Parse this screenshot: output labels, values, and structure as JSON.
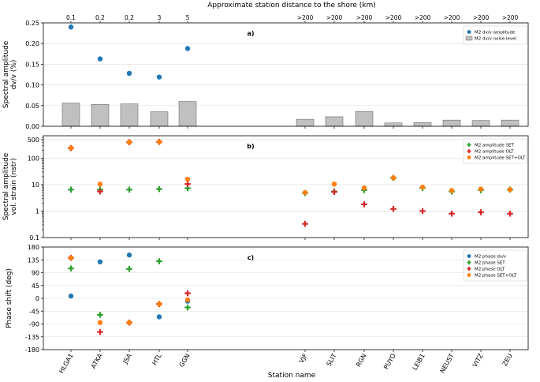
{
  "figure": {
    "top_axis_label": "Approximate station distance to the shore (km)",
    "bottom_axis_label": "Station name"
  },
  "chart_data": [
    {
      "panel": "a)",
      "type": "bar",
      "categories": [
        "HLGA1",
        "ATKA",
        "JSA",
        "HTL",
        "GGN",
        "VJF",
        "SLIT",
        "RGN",
        "PUYO",
        "LEIB1",
        "NEUST",
        "VITZ",
        "ZEU"
      ],
      "distance_labels": [
        "0.1",
        "0.2",
        "0.2",
        "3",
        "5",
        ">200",
        ">200",
        ">200",
        ">200",
        ">200",
        ">200",
        ">200",
        ">200"
      ],
      "ylabel": "Spectral amplitude\ndv/v (%)",
      "ylim": [
        0,
        0.25
      ],
      "yticks": [
        "0.00",
        "0.05",
        "0.10",
        "0.15",
        "0.20",
        "0.25"
      ],
      "grid": true,
      "legend_position": "top-right",
      "series": [
        {
          "name": "M2 dv/v amplitude",
          "kind": "scatter",
          "color": "#1f77b4",
          "values": [
            0.24,
            0.163,
            0.128,
            0.119,
            0.188,
            null,
            null,
            null,
            null,
            null,
            null,
            null,
            null
          ]
        },
        {
          "name": "M2 dv/v noise level",
          "kind": "bar",
          "color": "#c0c0c0",
          "values": [
            0.056,
            0.053,
            0.054,
            0.035,
            0.06,
            0.017,
            0.023,
            0.036,
            0.008,
            0.009,
            0.015,
            0.014,
            0.015
          ]
        }
      ]
    },
    {
      "panel": "b)",
      "type": "scatter",
      "categories": [
        "HLGA1",
        "ATKA",
        "JSA",
        "HTL",
        "GGN",
        "VJF",
        "SLIT",
        "RGN",
        "PUYO",
        "LEIB1",
        "NEUST",
        "VITZ",
        "ZEU"
      ],
      "ylabel": "Spectral amplitude\nvol. strain (nstr)",
      "yscale": "log",
      "ylim": [
        0.1,
        700
      ],
      "yticks": [
        "0.1",
        "1",
        "10",
        "100",
        "500"
      ],
      "grid": true,
      "legend_position": "top-right",
      "series": [
        {
          "name": "M2 amplitude SET",
          "marker": "plus",
          "color": "#2ca02c",
          "values": [
            6.5,
            6.5,
            6.5,
            6.8,
            7.3,
            4.8,
            5.5,
            6.2,
            18,
            7.5,
            5.5,
            6.2,
            6.5
          ]
        },
        {
          "name": "M2 amplitude OLT",
          "marker": "plus",
          "color": "#d62728",
          "values": [
            240,
            5.5,
            400,
            410,
            10.5,
            0.33,
            5.3,
            1.8,
            1.2,
            1.0,
            0.8,
            0.9,
            0.8
          ]
        },
        {
          "name": "M2 amplitude SET+OLT",
          "marker": "circle",
          "color": "#ff7f0e",
          "values": [
            240,
            10.5,
            400,
            410,
            16,
            5.0,
            10.5,
            7.5,
            18,
            8.0,
            6.0,
            6.8,
            6.5
          ]
        }
      ]
    },
    {
      "panel": "c)",
      "type": "scatter",
      "categories": [
        "HLGA1",
        "ATKA",
        "JSA",
        "HTL",
        "GGN",
        "VJF",
        "SLIT",
        "RGN",
        "PUYO",
        "LEIB1",
        "NEUST",
        "VITZ",
        "ZEU"
      ],
      "ylabel": "Phase shift (deg)",
      "ylim": [
        -180,
        180
      ],
      "yticks": [
        "-180",
        "-135",
        "-90",
        "-45",
        "0",
        "45",
        "90",
        "135",
        "180"
      ],
      "grid": true,
      "legend_position": "top-right",
      "series": [
        {
          "name": "M2 phase dv/v",
          "marker": "circle",
          "color": "#1f77b4",
          "values": [
            8,
            128,
            152,
            -65,
            -10,
            null,
            null,
            null,
            null,
            null,
            null,
            null,
            null
          ]
        },
        {
          "name": "M2 phase SET",
          "marker": "plus",
          "color": "#2ca02c",
          "values": [
            105,
            -58,
            103,
            130,
            -32,
            null,
            null,
            null,
            null,
            null,
            null,
            null,
            null
          ]
        },
        {
          "name": "M2 phase OLT",
          "marker": "plus",
          "color": "#d62728",
          "values": [
            142,
            -118,
            -85,
            -20,
            18,
            null,
            null,
            null,
            null,
            null,
            null,
            null,
            null
          ]
        },
        {
          "name": "M2 phase SET+OLT",
          "marker": "circle",
          "color": "#ff7f0e",
          "values": [
            142,
            -85,
            -85,
            -20,
            -5,
            null,
            null,
            null,
            null,
            null,
            null,
            null,
            null
          ]
        }
      ]
    }
  ]
}
